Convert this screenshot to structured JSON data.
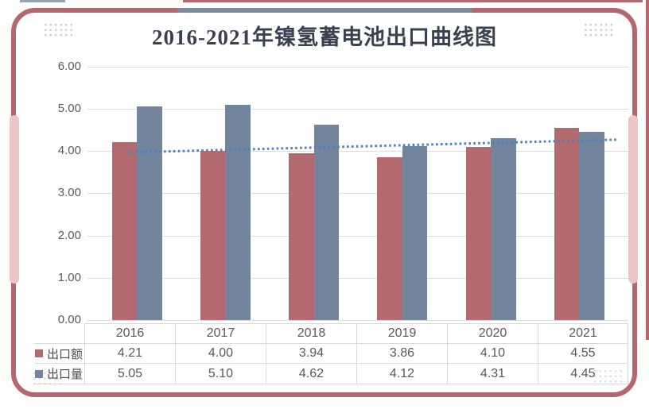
{
  "page": {
    "title": "2016-2021年镍氢蓄电池出口曲线图"
  },
  "chart_data": {
    "type": "bar",
    "title": "2016-2021年镍氢蓄电池出口曲线图",
    "categories": [
      "2016",
      "2017",
      "2018",
      "2019",
      "2020",
      "2021"
    ],
    "series": [
      {
        "key": "export-value",
        "name": "出口额",
        "color": "#b26a6e",
        "values": [
          4.21,
          4.0,
          3.94,
          3.86,
          4.1,
          4.55
        ]
      },
      {
        "key": "export-volume",
        "name": "出口量",
        "color": "#72859c",
        "values": [
          5.05,
          5.1,
          4.62,
          4.12,
          4.31,
          4.45
        ]
      }
    ],
    "trendline": {
      "series": "出口额",
      "style": "dotted",
      "color": "#4d7ec0"
    },
    "y_axis": {
      "min": 0,
      "max": 6,
      "step": 1,
      "ticks": [
        "6.00",
        "5.00",
        "4.00",
        "3.00",
        "2.00",
        "1.00",
        "0.00"
      ]
    },
    "xlabel": "",
    "ylabel": "",
    "ylim": [
      0,
      6
    ],
    "grid": true,
    "legend_position": "table-left",
    "value_format": "0.00"
  },
  "colors": {
    "card_border": "#b3686f",
    "card_top_accent": "#7e8c9f",
    "side_accent": "#eac6c5",
    "grid_line": "#dcdcdc",
    "table_border": "#d9d9d9",
    "axis_text": "#595959",
    "title_text": "#3a4150",
    "background": "#ffffff"
  }
}
